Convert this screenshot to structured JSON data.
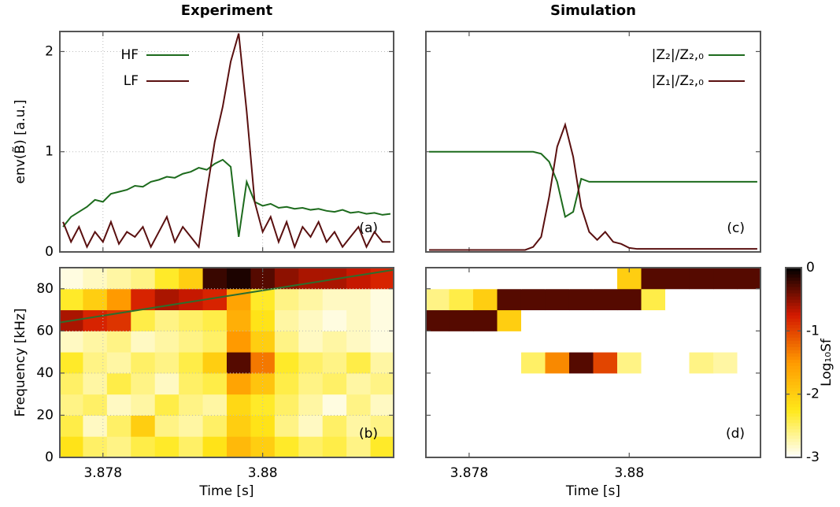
{
  "chart_data": [
    {
      "type": "line",
      "title": "Experiment",
      "ylabel": "env(B̃) [a.u.]",
      "annotation": "(a)",
      "x": [
        3.8775,
        3.8776,
        3.8777,
        3.8778,
        3.8779,
        3.878,
        3.8781,
        3.8782,
        3.8783,
        3.8784,
        3.8785,
        3.8786,
        3.8787,
        3.8788,
        3.8789,
        3.879,
        3.8791,
        3.8792,
        3.8793,
        3.8794,
        3.8795,
        3.8796,
        3.8797,
        3.8798,
        3.8799,
        3.88,
        3.8801,
        3.8802,
        3.8803,
        3.8804,
        3.8805,
        3.8806,
        3.8807,
        3.8808,
        3.8809,
        3.881,
        3.8811,
        3.8812,
        3.8813,
        3.8814,
        3.8815,
        3.8816
      ],
      "series": [
        {
          "name": "HF",
          "color": "#1d6b1d",
          "values": [
            0.25,
            0.35,
            0.4,
            0.45,
            0.52,
            0.5,
            0.58,
            0.6,
            0.62,
            0.66,
            0.65,
            0.7,
            0.72,
            0.75,
            0.74,
            0.78,
            0.8,
            0.84,
            0.82,
            0.88,
            0.92,
            0.85,
            0.15,
            0.7,
            0.5,
            0.46,
            0.48,
            0.44,
            0.45,
            0.43,
            0.44,
            0.42,
            0.43,
            0.41,
            0.4,
            0.42,
            0.39,
            0.4,
            0.38,
            0.39,
            0.37,
            0.38
          ]
        },
        {
          "name": "LF",
          "color": "#5a1010",
          "values": [
            0.3,
            0.1,
            0.25,
            0.05,
            0.2,
            0.1,
            0.3,
            0.08,
            0.2,
            0.15,
            0.25,
            0.05,
            0.2,
            0.35,
            0.1,
            0.25,
            0.15,
            0.05,
            0.6,
            1.1,
            1.45,
            1.9,
            2.18,
            1.4,
            0.5,
            0.2,
            0.35,
            0.1,
            0.3,
            0.05,
            0.25,
            0.15,
            0.3,
            0.1,
            0.2,
            0.05,
            0.15,
            0.25,
            0.05,
            0.2,
            0.1,
            0.1
          ]
        }
      ],
      "xlim": [
        3.87746,
        3.88164
      ],
      "ylim": [
        0,
        2.2
      ],
      "xticks": [
        3.878,
        3.88
      ],
      "yticks": [
        0,
        1,
        2
      ],
      "show_xticklabels": false,
      "show_yticklabels": true,
      "grid": true,
      "legend": "upper left"
    },
    {
      "type": "heatmap",
      "ylabel": "Frequency [kHz]",
      "xlabel": "Time [s]",
      "annotation": "(b)",
      "x": [
        3.8776,
        3.8779,
        3.8782,
        3.8785,
        3.8788,
        3.8791,
        3.8794,
        3.8797,
        3.88,
        3.8803,
        3.8806,
        3.8809,
        3.8812,
        3.8815
      ],
      "y": [
        5,
        15,
        25,
        35,
        45,
        55,
        65,
        75,
        85
      ],
      "z": [
        [
          -2.2,
          -2.5,
          -2.6,
          -2.4,
          -2.3,
          -2.5,
          -2.2,
          -1.8,
          -2.0,
          -2.3,
          -2.5,
          -2.4,
          -2.6,
          -2.3
        ],
        [
          -2.4,
          -2.8,
          -2.5,
          -2.0,
          -2.6,
          -2.7,
          -2.5,
          -2.0,
          -2.2,
          -2.6,
          -2.8,
          -2.5,
          -2.7,
          -2.6
        ],
        [
          -2.6,
          -2.5,
          -2.8,
          -2.7,
          -2.4,
          -2.6,
          -2.7,
          -2.1,
          -2.3,
          -2.5,
          -2.7,
          -2.9,
          -2.6,
          -2.8
        ],
        [
          -2.5,
          -2.7,
          -2.4,
          -2.6,
          -2.8,
          -2.5,
          -2.4,
          -1.6,
          -1.9,
          -2.4,
          -2.6,
          -2.5,
          -2.7,
          -2.6
        ],
        [
          -2.3,
          -2.6,
          -2.7,
          -2.5,
          -2.6,
          -2.4,
          -2.0,
          -0.3,
          -1.3,
          -2.3,
          -2.5,
          -2.6,
          -2.4,
          -2.7
        ],
        [
          -2.8,
          -2.7,
          -2.6,
          -2.8,
          -2.7,
          -2.6,
          -2.5,
          -1.5,
          -2.0,
          -2.6,
          -2.8,
          -2.7,
          -2.8,
          -2.9
        ],
        [
          -0.6,
          -0.8,
          -0.9,
          -2.4,
          -2.6,
          -2.5,
          -2.4,
          -1.7,
          -2.2,
          -2.7,
          -2.8,
          -2.9,
          -2.8,
          -2.9
        ],
        [
          -2.3,
          -2.0,
          -1.5,
          -0.8,
          -0.6,
          -0.7,
          -0.8,
          -1.6,
          -2.3,
          -2.6,
          -2.7,
          -2.8,
          -2.8,
          -2.9
        ],
        [
          -2.9,
          -2.8,
          -2.7,
          -2.6,
          -2.3,
          -2.0,
          -0.2,
          -0.1,
          -0.3,
          -0.5,
          -0.6,
          -0.6,
          -0.7,
          -0.8
        ]
      ],
      "overlay": {
        "x": [
          3.87746,
          3.88164
        ],
        "y": [
          64,
          89
        ],
        "color": "#2d6e2d"
      },
      "xlim": [
        3.87746,
        3.88164
      ],
      "ylim": [
        0,
        90
      ],
      "xticks": [
        3.878,
        3.88
      ],
      "yticks": [
        0,
        20,
        40,
        60,
        80
      ],
      "show_xticklabels": true,
      "show_yticklabels": true,
      "grid": true
    },
    {
      "type": "line",
      "title": "Simulation",
      "annotation": "(c)",
      "x": [
        3.8775,
        3.8776,
        3.8777,
        3.8778,
        3.8779,
        3.878,
        3.8781,
        3.8782,
        3.8783,
        3.8784,
        3.8785,
        3.8786,
        3.8787,
        3.8788,
        3.8789,
        3.879,
        3.8791,
        3.8792,
        3.8793,
        3.8794,
        3.8795,
        3.8796,
        3.8797,
        3.8798,
        3.8799,
        3.88,
        3.8801,
        3.8802,
        3.8803,
        3.8804,
        3.8805,
        3.8806,
        3.8807,
        3.8808,
        3.8809,
        3.881,
        3.8811,
        3.8812,
        3.8813,
        3.8814,
        3.8815,
        3.8816
      ],
      "series": [
        {
          "name": "|Z₂|/Z₂,₀",
          "color": "#1d6b1d",
          "values": [
            1,
            1,
            1,
            1,
            1,
            1,
            1,
            1,
            1,
            1,
            1,
            1,
            1,
            1,
            0.98,
            0.9,
            0.7,
            0.35,
            0.4,
            0.73,
            0.7,
            0.7,
            0.7,
            0.7,
            0.7,
            0.7,
            0.7,
            0.7,
            0.7,
            0.7,
            0.7,
            0.7,
            0.7,
            0.7,
            0.7,
            0.7,
            0.7,
            0.7,
            0.7,
            0.7,
            0.7,
            0.7
          ]
        },
        {
          "name": "|Z₁|/Z₂,₀",
          "color": "#5a1010",
          "values": [
            0.02,
            0.02,
            0.02,
            0.02,
            0.02,
            0.02,
            0.02,
            0.02,
            0.02,
            0.02,
            0.02,
            0.02,
            0.02,
            0.05,
            0.15,
            0.55,
            1.05,
            1.27,
            0.95,
            0.45,
            0.2,
            0.12,
            0.2,
            0.1,
            0.08,
            0.04,
            0.03,
            0.03,
            0.03,
            0.03,
            0.03,
            0.03,
            0.03,
            0.03,
            0.03,
            0.03,
            0.03,
            0.03,
            0.03,
            0.03,
            0.03,
            0.03
          ]
        }
      ],
      "xlim": [
        3.87746,
        3.88164
      ],
      "ylim": [
        0,
        2.2
      ],
      "xticks": [
        3.878,
        3.88
      ],
      "yticks": [
        0,
        1,
        2
      ],
      "show_xticklabels": false,
      "show_yticklabels": false,
      "grid": false,
      "legend": "upper right"
    },
    {
      "type": "heatmap",
      "xlabel": "Time [s]",
      "annotation": "(d)",
      "x": [
        3.8776,
        3.8779,
        3.8782,
        3.8785,
        3.8788,
        3.8791,
        3.8794,
        3.8797,
        3.88,
        3.8803,
        3.8806,
        3.8809,
        3.8812,
        3.8815
      ],
      "y": [
        5,
        15,
        25,
        35,
        45,
        55,
        65,
        75,
        85
      ],
      "z": [
        [
          -3,
          -3,
          -3,
          -3,
          -3,
          -3,
          -3,
          -3,
          -3,
          -3,
          -3,
          -3,
          -3,
          -3
        ],
        [
          -3,
          -3,
          -3,
          -3,
          -3,
          -3,
          -3,
          -3,
          -3,
          -3,
          -3,
          -3,
          -3,
          -3
        ],
        [
          -3,
          -3,
          -3,
          -3,
          -3,
          -3,
          -3,
          -3,
          -3,
          -3,
          -3,
          -3,
          -3,
          -3
        ],
        [
          -3,
          -3,
          -3,
          -3,
          -3,
          -3,
          -3,
          -3,
          -3,
          -3,
          -3,
          -3,
          -3,
          -3
        ],
        [
          -3,
          -3,
          -3,
          -3,
          -2.5,
          -1.4,
          -0.3,
          -1.0,
          -2.6,
          -3,
          -3,
          -2.6,
          -2.7,
          -3
        ],
        [
          -3,
          -3,
          -3,
          -3,
          -3,
          -3,
          -3,
          -3,
          -3,
          -3,
          -3,
          -3,
          -3,
          -3
        ],
        [
          -0.3,
          -0.3,
          -0.3,
          -2.0,
          -3,
          -3,
          -3,
          -3,
          -3,
          -3,
          -3,
          -3,
          -3,
          -3
        ],
        [
          -2.6,
          -2.4,
          -2.0,
          -0.3,
          -0.3,
          -0.3,
          -0.3,
          -0.3,
          -0.3,
          -2.4,
          -3,
          -3,
          -3,
          -3
        ],
        [
          -3,
          -3,
          -3,
          -3,
          -3,
          -3,
          -3,
          -3,
          -2.0,
          -0.3,
          -0.3,
          -0.3,
          -0.3,
          -0.3
        ]
      ],
      "xlim": [
        3.87746,
        3.88164
      ],
      "ylim": [
        0,
        90
      ],
      "xticks": [
        3.878,
        3.88
      ],
      "yticks": [
        0,
        20,
        40,
        60,
        80
      ],
      "show_xticklabels": true,
      "show_yticklabels": false,
      "grid": false
    },
    {
      "type": "colorbar",
      "label": "Log₁₀Sf",
      "clim": [
        -3,
        0
      ],
      "cticks": [
        0,
        -1,
        -2,
        -3
      ],
      "colormap": [
        "#ffffff",
        "#ffe81a",
        "#ff9a00",
        "#d41a00",
        "#000000"
      ]
    }
  ]
}
